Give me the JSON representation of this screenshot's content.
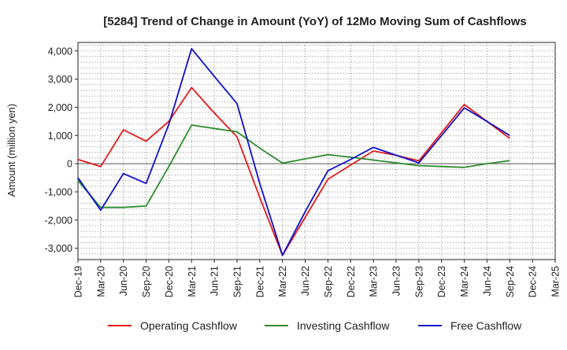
{
  "chart_data": {
    "type": "line",
    "title": "[5284]  Trend of Change in Amount (YoY) of 12Mo Moving Sum of Cashflows",
    "xlabel": "",
    "ylabel": "Amount (million yen)",
    "ylim": [
      -3400,
      4300
    ],
    "yticks": [
      -3000,
      -2000,
      -1000,
      0,
      1000,
      2000,
      3000,
      4000
    ],
    "ytick_labels": [
      "-3,000",
      "-2,000",
      "-1,000",
      "0",
      "1,000",
      "2,000",
      "3,000",
      "4,000"
    ],
    "categories": [
      "Dec-19",
      "Mar-20",
      "Jun-20",
      "Sep-20",
      "Dec-20",
      "Mar-21",
      "Jun-21",
      "Sep-21",
      "Dec-21",
      "Mar-22",
      "Jun-22",
      "Sep-22",
      "Dec-22",
      "Mar-23",
      "Jun-23",
      "Sep-23",
      "Dec-23",
      "Mar-24",
      "Jun-24",
      "Sep-24",
      "Dec-24",
      "Mar-25"
    ],
    "grid": true,
    "legend_position": "bottom",
    "series": [
      {
        "name": "Operating Cashflow",
        "color": "#e31a1c",
        "values": [
          150,
          -100,
          1200,
          800,
          1500,
          2700,
          1800,
          950,
          -1200,
          -3250,
          -1900,
          -550,
          -50,
          450,
          300,
          100,
          1100,
          2100,
          1500,
          900,
          null,
          null
        ]
      },
      {
        "name": "Investing Cashflow",
        "color": "#2e8b2e",
        "values": [
          -600,
          -1550,
          -1550,
          -1500,
          -100,
          1370,
          1250,
          1130,
          550,
          20,
          170,
          320,
          230,
          130,
          30,
          -70,
          -100,
          -130,
          0,
          110,
          null,
          null
        ]
      },
      {
        "name": "Free Cashflow",
        "color": "#1010cc",
        "values": [
          -500,
          -1650,
          -350,
          -700,
          1400,
          4080,
          3100,
          2130,
          -700,
          -3250,
          -1700,
          -250,
          150,
          580,
          300,
          30,
          1000,
          1980,
          1500,
          1000,
          null,
          null
        ]
      }
    ]
  }
}
